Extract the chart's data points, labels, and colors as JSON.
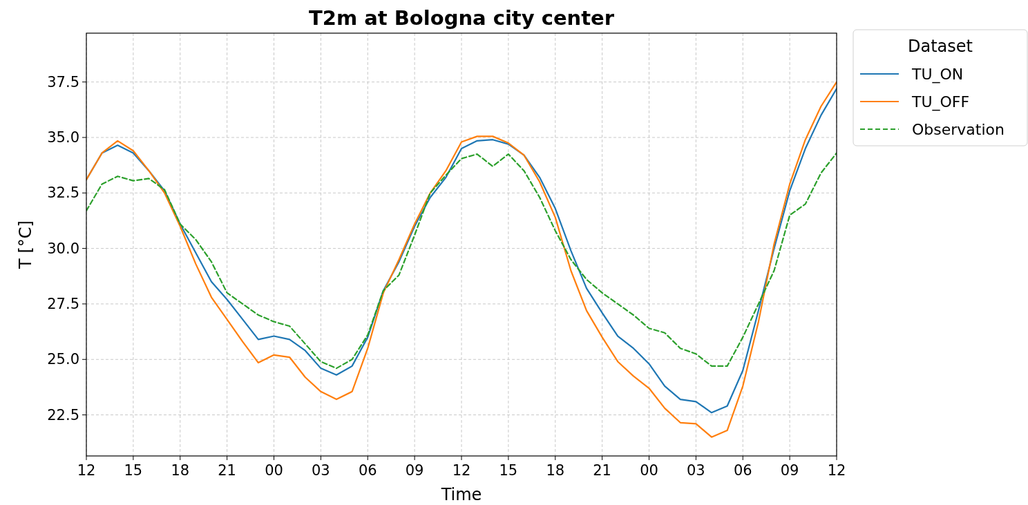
{
  "chart_data": {
    "type": "line",
    "title": "T2m at Bologna city center",
    "xlabel": "Time",
    "ylabel": "T [°C]",
    "legend_title": "Dataset",
    "categories": [
      "12",
      null,
      null,
      "15",
      null,
      null,
      "18",
      null,
      null,
      "21",
      null,
      null,
      "00",
      null,
      null,
      "03",
      null,
      null,
      "06",
      null,
      null,
      "09",
      null,
      null,
      "12",
      null,
      null,
      "15",
      null,
      null,
      "18",
      null,
      null,
      "21",
      null,
      null,
      "00",
      null,
      null,
      "03",
      null,
      null,
      "06",
      null,
      null,
      "09",
      null,
      null,
      "12"
    ],
    "series": [
      {
        "name": "TU_ON",
        "color": "#1f77b4",
        "line_style": "solid",
        "values": [
          33.1,
          34.3,
          34.65,
          34.3,
          33.5,
          32.6,
          31.1,
          29.8,
          28.5,
          27.7,
          26.8,
          25.9,
          26.05,
          25.9,
          25.4,
          24.6,
          24.3,
          24.7,
          26.0,
          28.1,
          29.4,
          31.0,
          32.3,
          33.2,
          34.5,
          34.85,
          34.9,
          34.7,
          34.2,
          33.2,
          31.8,
          29.9,
          28.2,
          27.1,
          26.05,
          25.5,
          24.8,
          23.8,
          23.2,
          23.1,
          22.6,
          22.9,
          24.5,
          27.2,
          30.0,
          32.6,
          34.5,
          36.0,
          37.2
        ]
      },
      {
        "name": "TU_OFF",
        "color": "#ff7f0e",
        "line_style": "solid",
        "values": [
          33.1,
          34.3,
          34.85,
          34.4,
          33.5,
          32.5,
          31.0,
          29.3,
          27.8,
          26.8,
          25.8,
          24.85,
          25.2,
          25.1,
          24.2,
          23.55,
          23.2,
          23.55,
          25.5,
          28.0,
          29.5,
          31.1,
          32.5,
          33.5,
          34.8,
          35.05,
          35.05,
          34.75,
          34.2,
          33.0,
          31.4,
          29.0,
          27.2,
          26.0,
          24.9,
          24.25,
          23.7,
          22.8,
          22.15,
          22.1,
          21.5,
          21.8,
          23.8,
          26.7,
          30.2,
          32.9,
          34.9,
          36.4,
          37.5
        ]
      },
      {
        "name": "Observation",
        "color": "#2ca02c",
        "line_style": "dashed",
        "values": [
          31.7,
          32.9,
          33.25,
          33.05,
          33.15,
          32.65,
          31.1,
          30.4,
          29.4,
          28.0,
          27.5,
          27.0,
          26.7,
          26.5,
          25.7,
          24.9,
          24.6,
          25.0,
          26.1,
          28.1,
          28.8,
          30.6,
          32.5,
          33.3,
          34.05,
          34.25,
          33.7,
          34.25,
          33.5,
          32.3,
          30.8,
          29.5,
          28.6,
          28.0,
          27.5,
          27.0,
          26.4,
          26.2,
          25.5,
          25.25,
          24.7,
          24.7,
          26.0,
          27.5,
          29.0,
          31.5,
          32.0,
          33.4,
          34.3
        ]
      }
    ],
    "ylim": [
      20.65,
      39.7
    ],
    "yticks": [
      {
        "value": 22.5,
        "label": "22.5"
      },
      {
        "value": 25,
        "label": "25.0"
      },
      {
        "value": 27.5,
        "label": "27.5"
      },
      {
        "value": 30,
        "label": "30.0"
      },
      {
        "value": 32.5,
        "label": "32.5"
      },
      {
        "value": 35,
        "label": "35.0"
      },
      {
        "value": 37.5,
        "label": "37.5"
      }
    ],
    "grid": true,
    "legend": "top right",
    "marker": "none"
  }
}
